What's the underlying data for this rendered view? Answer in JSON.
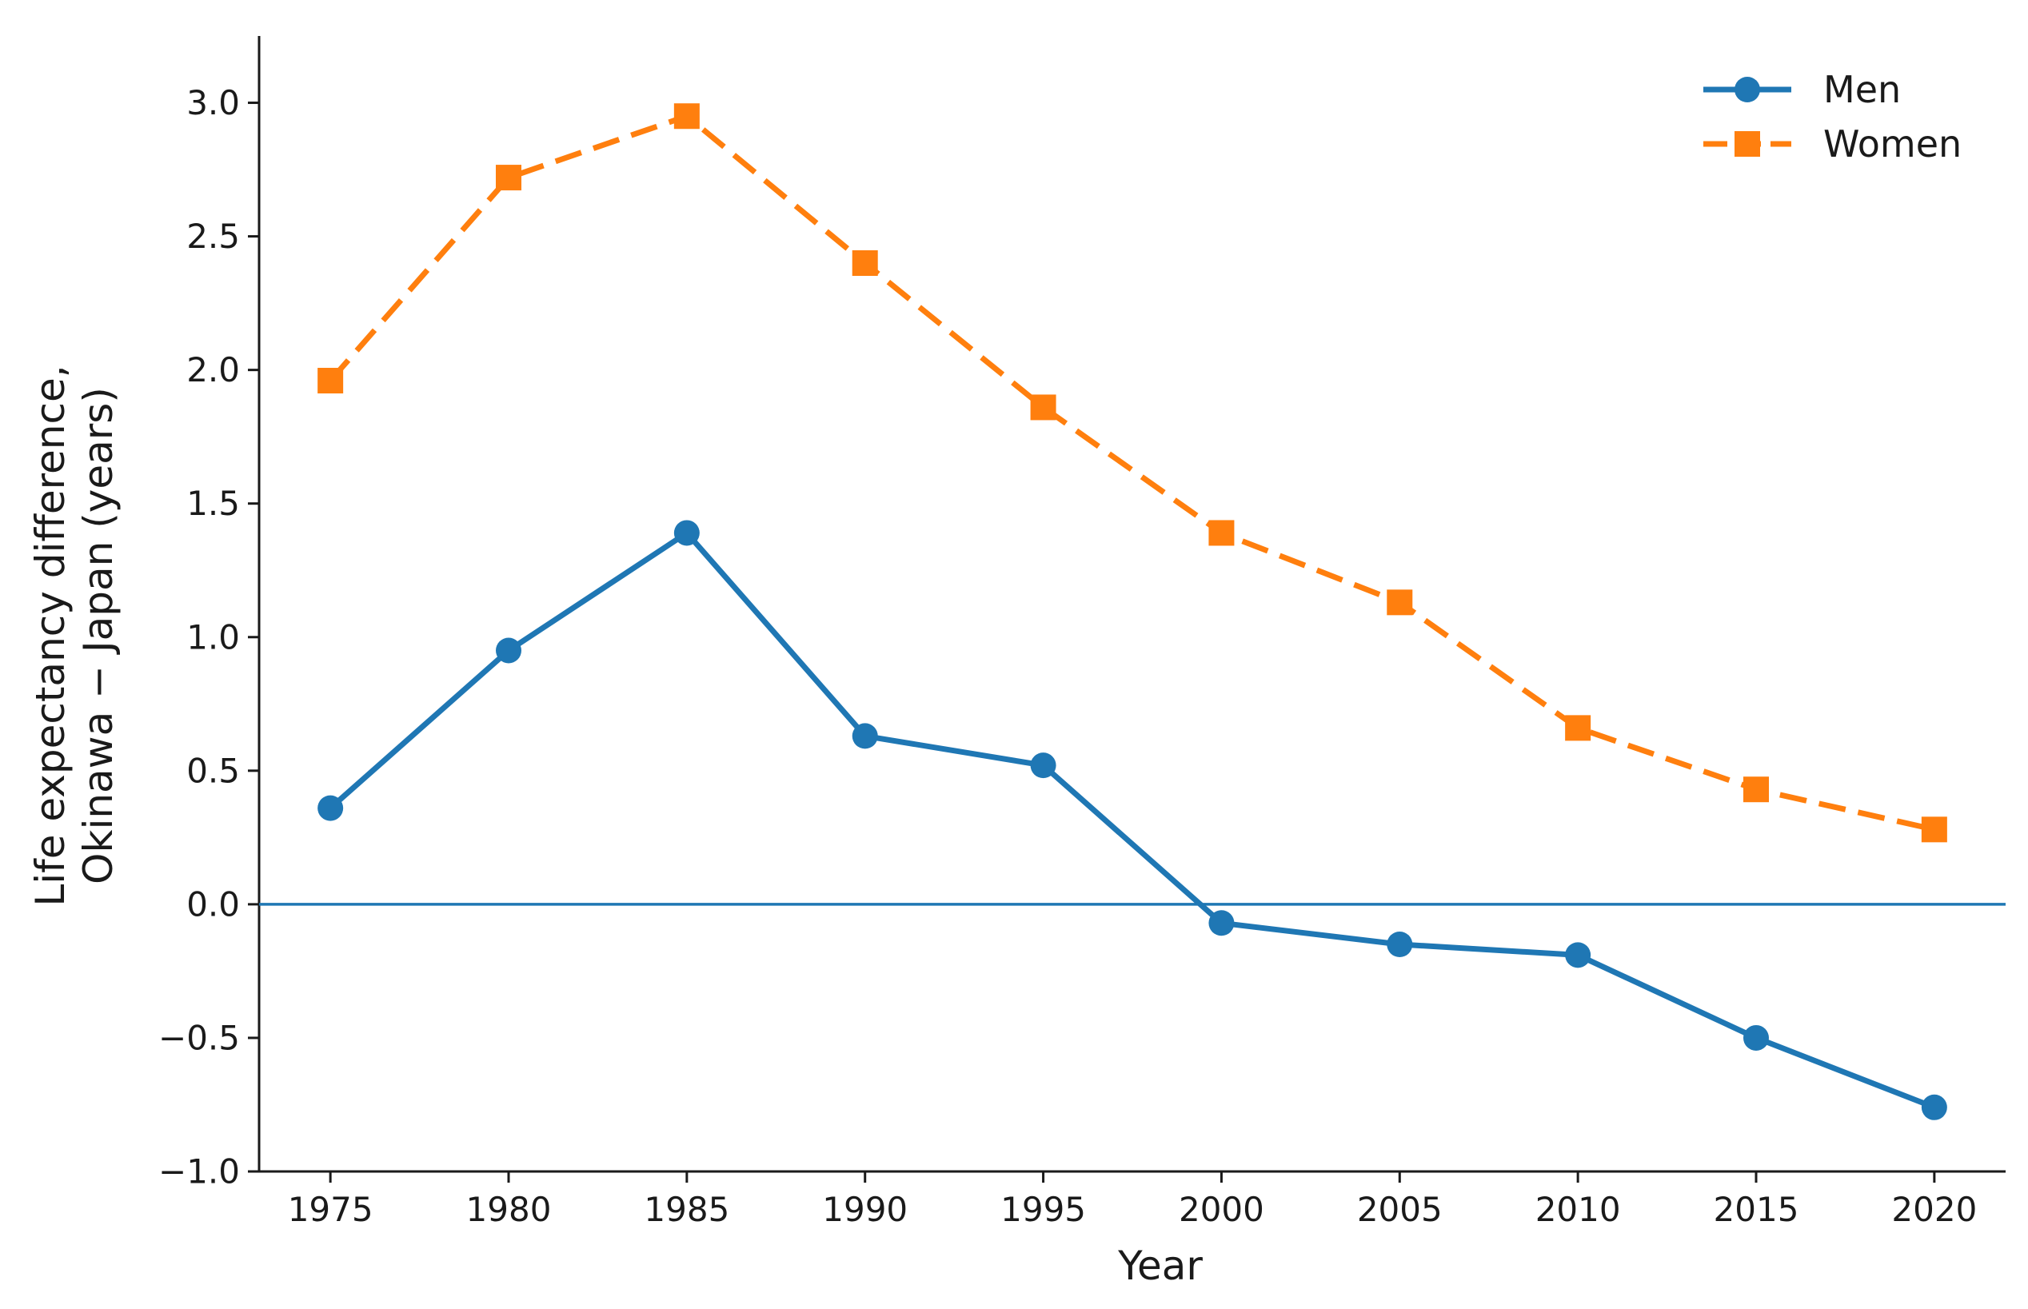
{
  "chart_data": {
    "type": "line",
    "xlabel": "Year",
    "ylabel_lines": [
      "Life expectancy difference,",
      "Okinawa − Japan (years)"
    ],
    "x": [
      1975,
      1980,
      1985,
      1990,
      1995,
      2000,
      2005,
      2010,
      2015,
      2020
    ],
    "x_ticks": [
      "1975",
      "1980",
      "1985",
      "1990",
      "1995",
      "2000",
      "2005",
      "2010",
      "2015",
      "2020"
    ],
    "y_ticks": [
      "−1.0",
      "−0.5",
      "0.0",
      "0.5",
      "1.0",
      "1.5",
      "2.0",
      "2.5",
      "3.0"
    ],
    "y_tick_values": [
      -1.0,
      -0.5,
      0.0,
      0.5,
      1.0,
      1.5,
      2.0,
      2.5,
      3.0
    ],
    "xlim": [
      1973,
      2022
    ],
    "ylim": [
      -1.0,
      3.25
    ],
    "reference_line_y": 0.0,
    "grid": false,
    "legend_position": "top-right",
    "series": [
      {
        "name": "Men",
        "color": "#1f77b4",
        "marker": "circle",
        "line_style": "solid",
        "values": [
          0.36,
          0.95,
          1.39,
          0.63,
          0.52,
          -0.07,
          -0.15,
          -0.19,
          -0.5,
          -0.76
        ]
      },
      {
        "name": "Women",
        "color": "#ff7f0e",
        "marker": "square",
        "line_style": "dashed",
        "values": [
          1.96,
          2.72,
          2.95,
          2.4,
          1.86,
          1.39,
          1.13,
          0.66,
          0.43,
          0.28
        ]
      }
    ]
  }
}
